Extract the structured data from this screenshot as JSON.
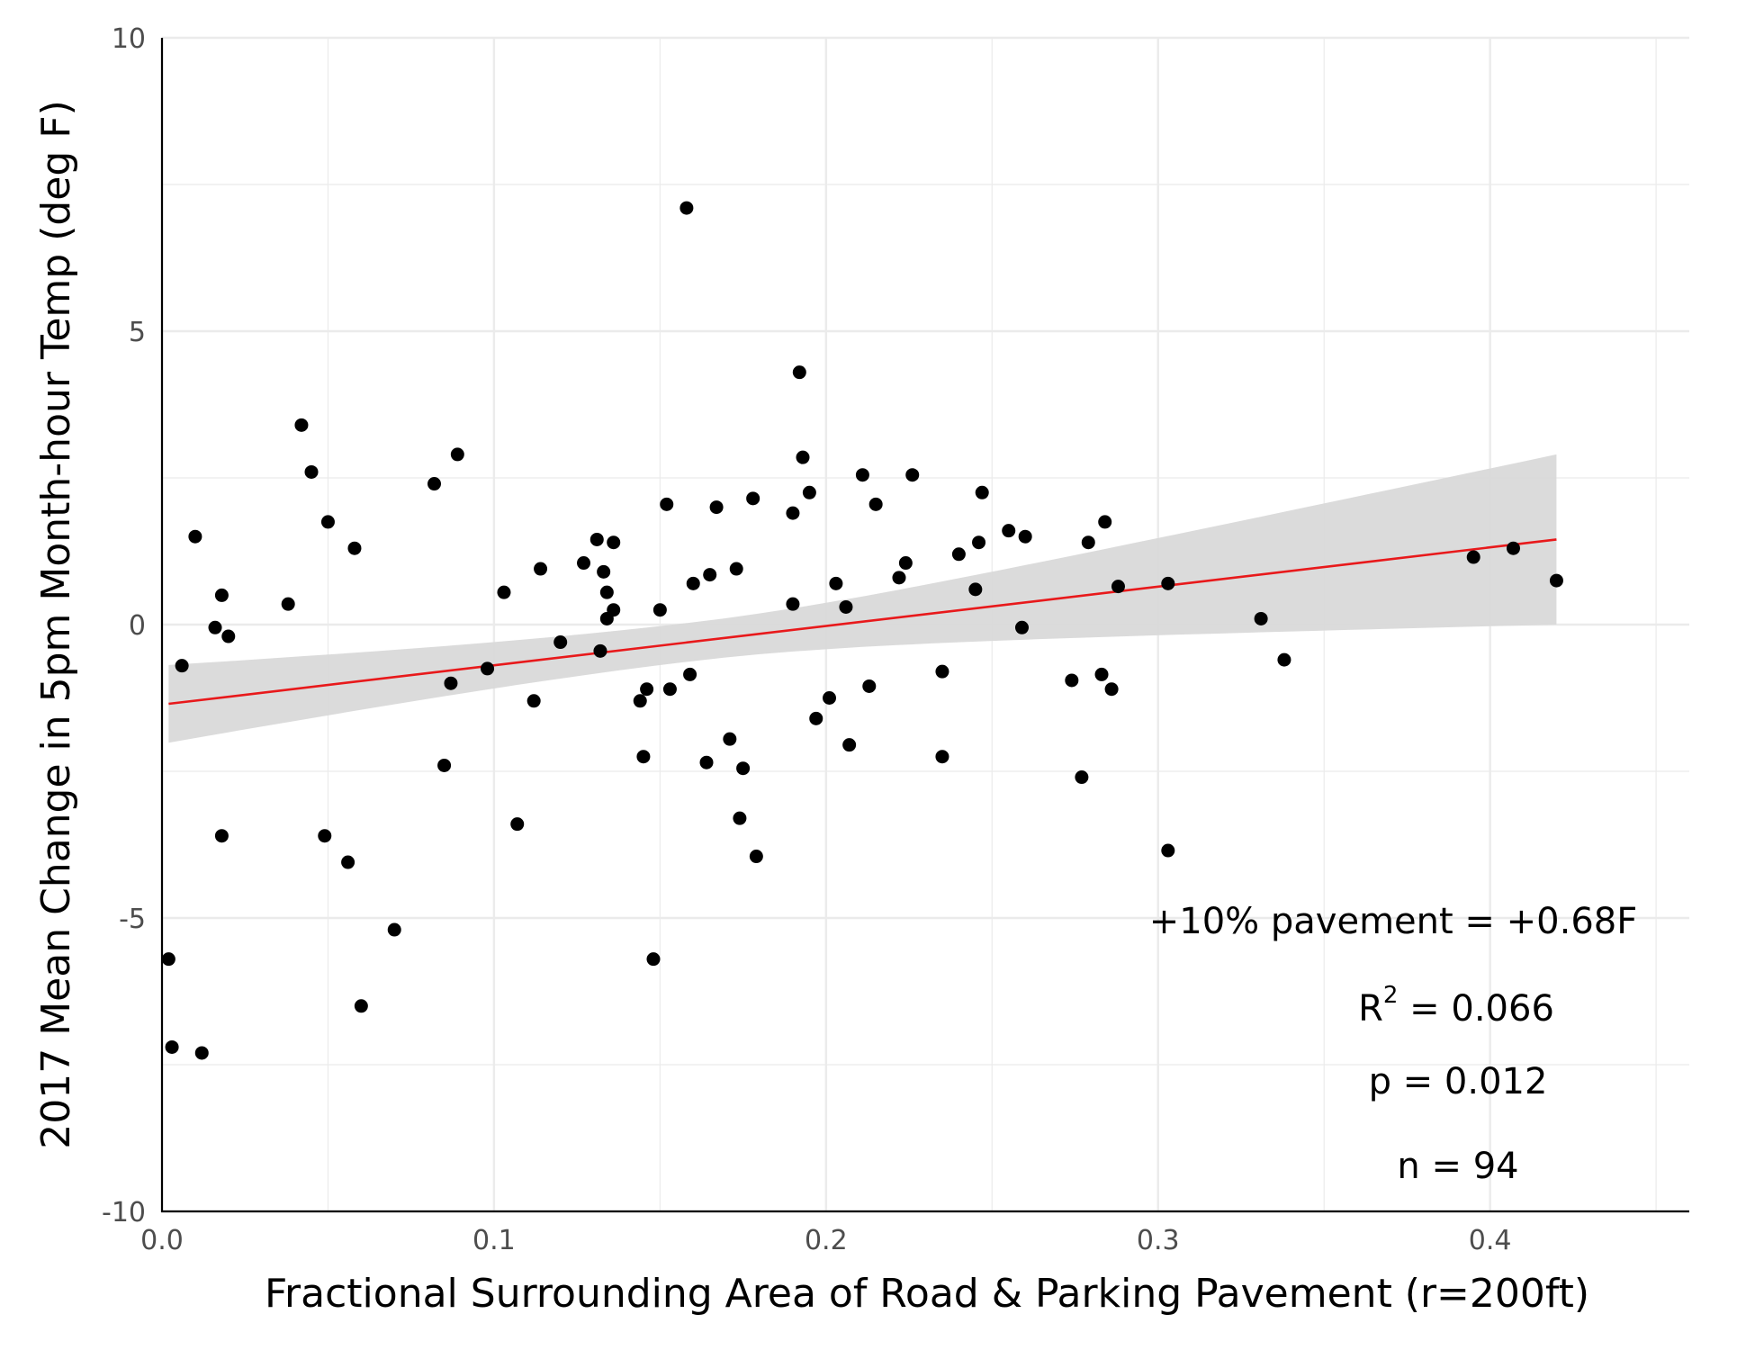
{
  "chart_data": {
    "type": "scatter",
    "xlabel": "Fractional Surrounding Area of Road & Parking Pavement (r=200ft)",
    "ylabel": "2017 Mean Change in 5pm Month-hour Temp (deg F)",
    "xlim": [
      0.0,
      0.46
    ],
    "ylim": [
      -10,
      10
    ],
    "x_ticks": [
      0.0,
      0.1,
      0.2,
      0.3,
      0.4
    ],
    "x_tick_labels": [
      "0.0",
      "0.1",
      "0.2",
      "0.3",
      "0.4"
    ],
    "y_ticks": [
      -10,
      -5,
      0,
      5,
      10
    ],
    "y_tick_labels": [
      "-10",
      "-5",
      "0",
      "5",
      "10"
    ],
    "grid": true,
    "colors": {
      "points": "#000000",
      "fit_line": "#e8191b",
      "confidence_band": "#d9d9d9",
      "grid": "#ebebeb"
    },
    "fit": {
      "x": [
        0.002,
        0.42
      ],
      "y": [
        -1.35,
        1.45
      ],
      "band_x": [
        0.002,
        0.42
      ],
      "band_upper": [
        -0.35,
        2.9
      ],
      "band_lower": [
        -2.35,
        0.0
      ]
    },
    "points": [
      {
        "x": 0.002,
        "y": -5.7
      },
      {
        "x": 0.003,
        "y": -7.2
      },
      {
        "x": 0.006,
        "y": -0.7
      },
      {
        "x": 0.01,
        "y": 1.5
      },
      {
        "x": 0.012,
        "y": -7.3
      },
      {
        "x": 0.016,
        "y": -0.05
      },
      {
        "x": 0.018,
        "y": 0.5
      },
      {
        "x": 0.018,
        "y": -3.6
      },
      {
        "x": 0.02,
        "y": -0.2
      },
      {
        "x": 0.038,
        "y": 0.35
      },
      {
        "x": 0.042,
        "y": 3.4
      },
      {
        "x": 0.045,
        "y": 2.6
      },
      {
        "x": 0.049,
        "y": -3.6
      },
      {
        "x": 0.05,
        "y": 1.75
      },
      {
        "x": 0.056,
        "y": -4.05
      },
      {
        "x": 0.058,
        "y": 1.3
      },
      {
        "x": 0.06,
        "y": -6.5
      },
      {
        "x": 0.07,
        "y": -5.2
      },
      {
        "x": 0.082,
        "y": 2.4
      },
      {
        "x": 0.085,
        "y": -2.4
      },
      {
        "x": 0.087,
        "y": -1.0
      },
      {
        "x": 0.089,
        "y": 2.9
      },
      {
        "x": 0.098,
        "y": -0.75
      },
      {
        "x": 0.103,
        "y": 0.55
      },
      {
        "x": 0.107,
        "y": -3.4
      },
      {
        "x": 0.112,
        "y": -1.3
      },
      {
        "x": 0.114,
        "y": 0.95
      },
      {
        "x": 0.12,
        "y": -0.3
      },
      {
        "x": 0.127,
        "y": 1.05
      },
      {
        "x": 0.131,
        "y": 1.45
      },
      {
        "x": 0.132,
        "y": -0.45
      },
      {
        "x": 0.133,
        "y": 0.9
      },
      {
        "x": 0.134,
        "y": 0.55
      },
      {
        "x": 0.134,
        "y": 0.1
      },
      {
        "x": 0.136,
        "y": 1.4
      },
      {
        "x": 0.136,
        "y": 0.25
      },
      {
        "x": 0.144,
        "y": -1.3
      },
      {
        "x": 0.145,
        "y": -2.25
      },
      {
        "x": 0.146,
        "y": -1.1
      },
      {
        "x": 0.148,
        "y": -5.7
      },
      {
        "x": 0.15,
        "y": 0.25
      },
      {
        "x": 0.152,
        "y": 2.05
      },
      {
        "x": 0.153,
        "y": -1.1
      },
      {
        "x": 0.158,
        "y": 7.1
      },
      {
        "x": 0.159,
        "y": -0.85
      },
      {
        "x": 0.16,
        "y": 0.7
      },
      {
        "x": 0.164,
        "y": -2.35
      },
      {
        "x": 0.165,
        "y": 0.85
      },
      {
        "x": 0.167,
        "y": 2.0
      },
      {
        "x": 0.171,
        "y": -1.95
      },
      {
        "x": 0.173,
        "y": 0.95
      },
      {
        "x": 0.174,
        "y": -3.3
      },
      {
        "x": 0.175,
        "y": -2.45
      },
      {
        "x": 0.178,
        "y": 2.15
      },
      {
        "x": 0.179,
        "y": -3.95
      },
      {
        "x": 0.19,
        "y": 1.9
      },
      {
        "x": 0.19,
        "y": 0.35
      },
      {
        "x": 0.192,
        "y": 4.3
      },
      {
        "x": 0.193,
        "y": 2.85
      },
      {
        "x": 0.195,
        "y": 2.25
      },
      {
        "x": 0.197,
        "y": -1.6
      },
      {
        "x": 0.201,
        "y": -1.25
      },
      {
        "x": 0.203,
        "y": 0.7
      },
      {
        "x": 0.206,
        "y": 0.3
      },
      {
        "x": 0.207,
        "y": -2.05
      },
      {
        "x": 0.211,
        "y": 2.55
      },
      {
        "x": 0.213,
        "y": -1.05
      },
      {
        "x": 0.215,
        "y": 2.05
      },
      {
        "x": 0.222,
        "y": 0.8
      },
      {
        "x": 0.224,
        "y": 1.05
      },
      {
        "x": 0.226,
        "y": 2.55
      },
      {
        "x": 0.235,
        "y": -0.8
      },
      {
        "x": 0.235,
        "y": -2.25
      },
      {
        "x": 0.24,
        "y": 1.2
      },
      {
        "x": 0.245,
        "y": 0.6
      },
      {
        "x": 0.246,
        "y": 1.4
      },
      {
        "x": 0.247,
        "y": 2.25
      },
      {
        "x": 0.255,
        "y": 1.6
      },
      {
        "x": 0.259,
        "y": -0.05
      },
      {
        "x": 0.26,
        "y": 1.5
      },
      {
        "x": 0.274,
        "y": -0.95
      },
      {
        "x": 0.277,
        "y": -2.6
      },
      {
        "x": 0.279,
        "y": 1.4
      },
      {
        "x": 0.283,
        "y": -0.85
      },
      {
        "x": 0.284,
        "y": 1.75
      },
      {
        "x": 0.286,
        "y": -1.1
      },
      {
        "x": 0.288,
        "y": 0.65
      },
      {
        "x": 0.303,
        "y": 0.7
      },
      {
        "x": 0.303,
        "y": -3.85
      },
      {
        "x": 0.331,
        "y": 0.1
      },
      {
        "x": 0.338,
        "y": -0.6
      },
      {
        "x": 0.395,
        "y": 1.15
      },
      {
        "x": 0.407,
        "y": 1.3
      },
      {
        "x": 0.42,
        "y": 0.75
      }
    ],
    "annotations": {
      "effect": "+10% pavement = +0.68F",
      "r2_prefix": "R",
      "r2_sup": "2",
      "r2_value": " = 0.066",
      "p": "p = 0.012",
      "n": "n = 94"
    }
  }
}
